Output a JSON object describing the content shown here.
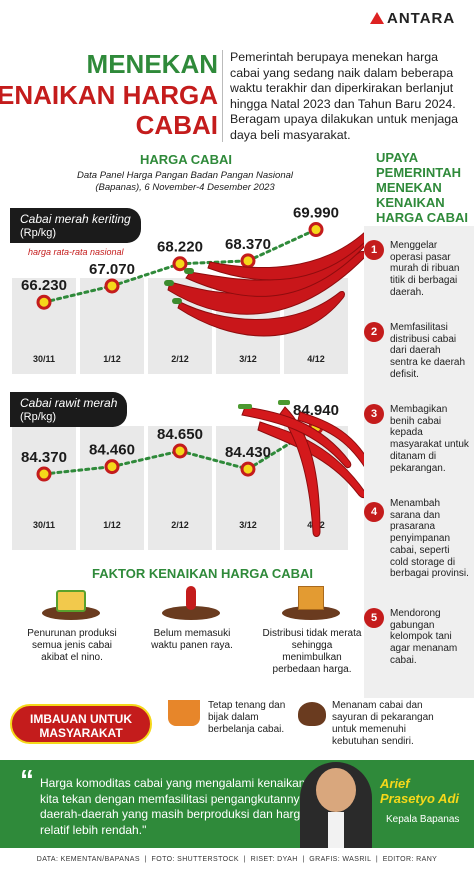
{
  "brand": {
    "logo_text": "ANTARA"
  },
  "title": {
    "line1": "MENEKAN",
    "line2": "KENAIKAN HARGA",
    "line3": "CABAI"
  },
  "intro": "Pemerintah berupaya menekan harga cabai yang sedang naik dalam beberapa waktu terakhir dan diperkirakan berlanjut hingga Natal 2023 dan Tahun Baru 2024. Beragam upaya dilakukan untuk menjaga daya beli masyarakat.",
  "harga": {
    "heading": "HARGA CABAI",
    "source": "Data Panel Harga Pangan Badan Pangan Nasional (Bapanas), 6 November-4 Desember 2023",
    "avg_note": "harga rata-rata nasional"
  },
  "chart_data": [
    {
      "type": "line",
      "title": "Cabai merah keriting",
      "ylabel": "(Rp/kg)",
      "categories": [
        "30/11",
        "1/12",
        "2/12",
        "3/12",
        "4/12"
      ],
      "series": [
        {
          "name": "Cabai merah keriting",
          "values": [
            66230,
            67070,
            68220,
            68370,
            69990
          ]
        }
      ],
      "labels": [
        "66.230",
        "67.070",
        "68.220",
        "68.370",
        "69.990"
      ],
      "ylim": [
        65000,
        71000
      ]
    },
    {
      "type": "line",
      "title": "Cabai rawit merah",
      "ylabel": "(Rp/kg)",
      "categories": [
        "30/11",
        "1/12",
        "2/12",
        "3/12",
        "4/12"
      ],
      "series": [
        {
          "name": "Cabai rawit merah",
          "values": [
            84370,
            84460,
            84650,
            84430,
            84940
          ]
        }
      ],
      "labels": [
        "84.370",
        "84.460",
        "84.650",
        "84.430",
        "84.940"
      ],
      "ylim": [
        84200,
        85100
      ]
    }
  ],
  "upaya": {
    "heading": "UPAYA PEMERINTAH MENEKAN KENAIKAN HARGA CABAI",
    "items": [
      {
        "num": "1",
        "text": "Menggelar operasi pasar murah di ribuan titik di berbagai daerah."
      },
      {
        "num": "2",
        "text": "Memfasilitasi distribusi cabai dari daerah sentra ke daerah defisit."
      },
      {
        "num": "3",
        "text": "Membagikan benih cabai kepada masyarakat untuk ditanam di pekarangan."
      },
      {
        "num": "4",
        "text": "Menambah sarana dan prasarana penyimpanan cabai, seperti cold storage di berbagai provinsi."
      },
      {
        "num": "5",
        "text": "Mendorong gabungan kelompok tani agar menanam cabai."
      }
    ]
  },
  "faktor": {
    "heading": "FAKTOR KENAIKAN HARGA CABAI",
    "items": [
      {
        "text": "Penurunan produksi semua jenis cabai akibat el nino."
      },
      {
        "text": "Belum memasuki waktu panen raya."
      },
      {
        "text": "Distribusi tidak merata sehingga menimbulkan perbedaan harga."
      }
    ]
  },
  "imbauan": {
    "badge": "IMBAUAN UNTUK MASYARAKAT",
    "items": [
      {
        "text": "Tetap tenang dan bijak dalam berbelanja cabai."
      },
      {
        "text": "Menanam cabai dan sayuran di pekarangan untuk memenuhi kebutuhan sendiri."
      }
    ]
  },
  "quote": {
    "text": "Harga komoditas cabai yang mengalami kenaikan ini kita tekan dengan memfasilitasi pengangkutannya dari daerah-daerah yang masih berproduksi dan harganya relatif lebih rendah.\"",
    "name_line1": "Arief",
    "name_line2": "Prasetyo Adi",
    "position": "Kepala Bapanas"
  },
  "footer": {
    "data": "DATA: KEMENTAN/BAPANAS",
    "foto": "FOTO: SHUTTERSTOCK",
    "riset": "RISET: DYAH",
    "grafis": "GRAFIS: WASRIL",
    "editor": "EDITOR: RANY"
  },
  "colors": {
    "green": "#2f8a3a",
    "red": "#c41c1c",
    "yellow": "#f5d81a",
    "dark": "#1b1b1b"
  }
}
